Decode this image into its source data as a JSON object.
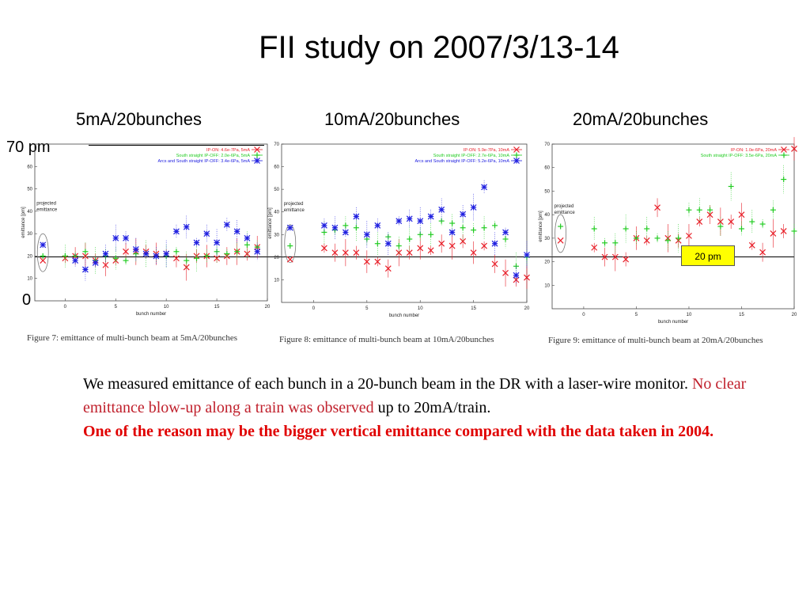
{
  "title": "FII study on 2007/3/13-14",
  "panels": [
    {
      "label": "5mA/20bunches",
      "caption": "Figure 7: emittance of multi-bunch beam at 5mA/20bunches"
    },
    {
      "label": "10mA/20bunches",
      "caption": "Figure 8: emittance of multi-bunch beam at 10mA/20bunches"
    },
    {
      "label": "20mA/20bunches",
      "caption": "Figure 9: emittance of multi-bunch beam at 20mA/20bunches"
    }
  ],
  "top_label": "70 pm",
  "zero_label": "0",
  "badge": "20 pm",
  "text": {
    "p1_start": "We measured emittance of each bunch in a 20-bunch beam in the DR with a laser-wire monitor.",
    "p1_red": "No clear emittance blow-up along a train was observed",
    "p1_end": "up to 20mA/train.",
    "p2": "One of the reason may be the bigger vertical emittance compared with the data taken in 2004."
  },
  "colors": {
    "ip_on": "#e8202a",
    "south_off": "#22cc22",
    "arcs_off": "#2020e0",
    "body_red": "#c0202c",
    "bold_red": "#e00000",
    "badge": "#ffff00"
  },
  "chart_data": [
    {
      "type": "scatter",
      "xlabel": "bunch number",
      "ylabel": "emittance [pm]",
      "ylim": [
        0,
        70
      ],
      "xlim": [
        -3,
        20
      ],
      "xticks": [
        0,
        5,
        10,
        15,
        20
      ],
      "yticks": [
        10,
        20,
        30,
        40,
        50,
        60
      ],
      "legend_position": "top-right",
      "annotation": "projected emittance",
      "series": [
        {
          "name": "IP-ON: 4.6e-7Pa, 5mA",
          "marker": "x",
          "color": "#e8202a",
          "projected": 18,
          "x": [
            0,
            1,
            2,
            3,
            4,
            5,
            6,
            7,
            8,
            9,
            10,
            11,
            12,
            13,
            14,
            15,
            16,
            17,
            18,
            19
          ],
          "y": [
            19,
            20,
            20,
            18,
            16,
            18,
            22,
            22,
            22,
            21,
            21,
            19,
            15,
            20,
            20,
            19,
            20,
            22,
            21,
            24
          ]
        },
        {
          "name": "South straight IP-OFF: 2.0e-6Pa, 5mA",
          "marker": "+",
          "color": "#22cc22",
          "projected": 20,
          "x": [
            0,
            1,
            2,
            3,
            4,
            5,
            6,
            7,
            8,
            9,
            10,
            11,
            12,
            13,
            14,
            15,
            16,
            17,
            18,
            19
          ],
          "y": [
            20,
            20,
            22,
            18,
            20,
            19,
            18,
            21,
            21,
            20,
            20,
            22,
            18,
            19,
            20,
            22,
            21,
            22,
            25,
            24
          ]
        },
        {
          "name": "Arcs and South straight IP-OFF: 3.4e-6Pa, 5mA",
          "marker": "*",
          "color": "#2020e0",
          "projected": 25,
          "x": [
            1,
            2,
            3,
            4,
            5,
            6,
            7,
            8,
            9,
            10,
            11,
            12,
            13,
            14,
            15,
            16,
            17,
            18,
            19
          ],
          "y": [
            18,
            14,
            17,
            21,
            28,
            28,
            23,
            21,
            20,
            21,
            31,
            33,
            26,
            30,
            26,
            34,
            31,
            28,
            22
          ]
        }
      ]
    },
    {
      "type": "scatter",
      "xlabel": "bunch number",
      "ylabel": "emittance [pm]",
      "ylim": [
        0,
        70
      ],
      "xlim": [
        -3,
        20
      ],
      "xticks": [
        0,
        5,
        10,
        15,
        20
      ],
      "yticks": [
        10,
        20,
        30,
        40,
        50,
        60,
        70
      ],
      "legend_position": "top-right",
      "annotation": "projected emittance",
      "series": [
        {
          "name": "IP-ON: 5.9e-7Pa, 10mA",
          "marker": "x",
          "color": "#e8202a",
          "projected": 19,
          "x": [
            1,
            2,
            3,
            4,
            5,
            6,
            7,
            8,
            9,
            10,
            11,
            12,
            13,
            14,
            15,
            16,
            17,
            18,
            19,
            20
          ],
          "y": [
            24,
            22,
            22,
            22,
            18,
            18,
            15,
            22,
            22,
            24,
            23,
            26,
            25,
            27,
            22,
            25,
            17,
            13,
            10,
            11
          ]
        },
        {
          "name": "South straight IP-OFF: 2.7e-6Pa, 10mA",
          "marker": "+",
          "color": "#22cc22",
          "projected": 25,
          "x": [
            1,
            2,
            3,
            4,
            5,
            6,
            7,
            8,
            9,
            10,
            11,
            12,
            13,
            14,
            15,
            16,
            17,
            18,
            19,
            20
          ],
          "y": [
            31,
            32,
            34,
            33,
            28,
            26,
            29,
            25,
            28,
            30,
            30,
            36,
            35,
            33,
            32,
            33,
            34,
            28,
            16,
            20
          ]
        },
        {
          "name": "Arcs and South straight IP-OFF: 5.2e-6Pa, 10mA",
          "marker": "*",
          "color": "#2020e0",
          "projected": 33,
          "x": [
            1,
            2,
            3,
            4,
            5,
            6,
            7,
            8,
            9,
            10,
            11,
            12,
            13,
            14,
            15,
            16,
            17,
            18,
            19,
            20
          ],
          "y": [
            34,
            33,
            31,
            38,
            30,
            34,
            26,
            36,
            37,
            36,
            38,
            41,
            31,
            39,
            42,
            51,
            26,
            31,
            12,
            21
          ]
        }
      ]
    },
    {
      "type": "scatter",
      "xlabel": "bunch number",
      "ylabel": "emittance [pm]",
      "ylim": [
        0,
        70
      ],
      "xlim": [
        -3,
        20
      ],
      "xticks": [
        0,
        5,
        10,
        15,
        20
      ],
      "yticks": [
        10,
        20,
        30,
        40,
        50,
        60,
        70
      ],
      "legend_position": "top-right",
      "annotation": "projected emittance",
      "series": [
        {
          "name": "IP-ON: 1.0e-6Pa, 20mA",
          "marker": "x",
          "color": "#e8202a",
          "projected": 29,
          "x": [
            1,
            2,
            3,
            4,
            5,
            6,
            7,
            8,
            9,
            10,
            11,
            12,
            13,
            14,
            15,
            16,
            17,
            18,
            19,
            20
          ],
          "y": [
            26,
            22,
            22,
            21,
            30,
            29,
            43,
            30,
            29,
            31,
            37,
            40,
            37,
            37,
            40,
            27,
            24,
            32,
            33,
            68
          ]
        },
        {
          "name": "South straight IP-OFF: 3.5e-6Pa, 20mA",
          "marker": "+",
          "color": "#22cc22",
          "projected": 35,
          "x": [
            1,
            2,
            3,
            4,
            5,
            6,
            7,
            8,
            9,
            10,
            11,
            12,
            13,
            14,
            15,
            16,
            17,
            18,
            19,
            20
          ],
          "y": [
            34,
            28,
            28,
            34,
            30,
            34,
            30,
            29,
            30,
            42,
            42,
            42,
            35,
            52,
            34,
            37,
            36,
            42,
            55,
            33
          ]
        }
      ]
    }
  ]
}
